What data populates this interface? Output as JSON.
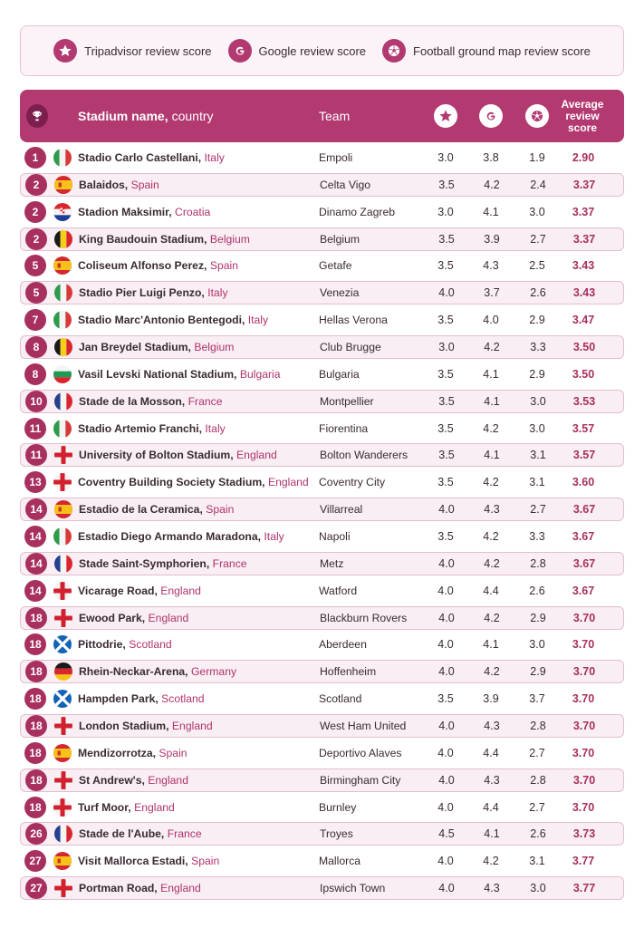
{
  "legend": {
    "tripadvisor": "Tripadvisor review score",
    "google": "Google review score",
    "football": "Football ground map review score"
  },
  "header": {
    "stadium": "Stadium name,",
    "country": "country",
    "team": "Team",
    "average_line1": "Average",
    "average_line2": "review",
    "average_line3": "score"
  },
  "colors": {
    "accent": "#b23a71",
    "rank": "#a8305f",
    "country_text": "#b0336b"
  },
  "rows": [
    {
      "rank": "1",
      "stadium": "Stadio Carlo Castellani,",
      "country": "Italy",
      "flag": "italy",
      "team": "Empoli",
      "tripadvisor": "3.0",
      "google": "3.8",
      "football": "1.9",
      "average": "2.90"
    },
    {
      "rank": "2",
      "stadium": "Balaidos,",
      "country": "Spain",
      "flag": "spain",
      "team": "Celta Vigo",
      "tripadvisor": "3.5",
      "google": "4.2",
      "football": "2.4",
      "average": "3.37"
    },
    {
      "rank": "2",
      "stadium": "Stadion Maksimir,",
      "country": "Croatia",
      "flag": "croatia",
      "team": "Dinamo Zagreb",
      "tripadvisor": "3.0",
      "google": "4.1",
      "football": "3.0",
      "average": "3.37"
    },
    {
      "rank": "2",
      "stadium": "King Baudouin Stadium,",
      "country": "Belgium",
      "flag": "belgium",
      "team": "Belgium",
      "tripadvisor": "3.5",
      "google": "3.9",
      "football": "2.7",
      "average": "3.37"
    },
    {
      "rank": "5",
      "stadium": "Coliseum Alfonso Perez,",
      "country": "Spain",
      "flag": "spain",
      "team": "Getafe",
      "tripadvisor": "3.5",
      "google": "4.3",
      "football": "2.5",
      "average": "3.43"
    },
    {
      "rank": "5",
      "stadium": "Stadio Pier Luigi Penzo,",
      "country": "Italy",
      "flag": "italy",
      "team": "Venezia",
      "tripadvisor": "4.0",
      "google": "3.7",
      "football": "2.6",
      "average": "3.43"
    },
    {
      "rank": "7",
      "stadium": "Stadio Marc'Antonio Bentegodi,",
      "country": "Italy",
      "flag": "italy",
      "team": "Hellas Verona",
      "tripadvisor": "3.5",
      "google": "4.0",
      "football": "2.9",
      "average": "3.47"
    },
    {
      "rank": "8",
      "stadium": "Jan Breydel Stadium,",
      "country": "Belgium",
      "flag": "belgium",
      "team": "Club Brugge",
      "tripadvisor": "3.0",
      "google": "4.2",
      "football": "3.3",
      "average": "3.50"
    },
    {
      "rank": "8",
      "stadium": "Vasil Levski National Stadium,",
      "country": "Bulgaria",
      "flag": "bulgaria",
      "team": "Bulgaria",
      "tripadvisor": "3.5",
      "google": "4.1",
      "football": "2.9",
      "average": "3.50"
    },
    {
      "rank": "10",
      "stadium": "Stade de la Mosson,",
      "country": "France",
      "flag": "france",
      "team": "Montpellier",
      "tripadvisor": "3.5",
      "google": "4.1",
      "football": "3.0",
      "average": "3.53"
    },
    {
      "rank": "11",
      "stadium": "Stadio Artemio Franchi,",
      "country": "Italy",
      "flag": "italy",
      "team": "Fiorentina",
      "tripadvisor": "3.5",
      "google": "4.2",
      "football": "3.0",
      "average": "3.57"
    },
    {
      "rank": "11",
      "stadium": "University of Bolton Stadium,",
      "country": "England",
      "flag": "england",
      "team": "Bolton Wanderers",
      "tripadvisor": "3.5",
      "google": "4.1",
      "football": "3.1",
      "average": "3.57"
    },
    {
      "rank": "13",
      "stadium": "Coventry Building Society Stadium,",
      "country": "England",
      "flag": "england",
      "team": "Coventry City",
      "tripadvisor": "3.5",
      "google": "4.2",
      "football": "3.1",
      "average": "3.60"
    },
    {
      "rank": "14",
      "stadium": "Estadio de la Ceramica,",
      "country": "Spain",
      "flag": "spain",
      "team": "Villarreal",
      "tripadvisor": "4.0",
      "google": "4.3",
      "football": "2.7",
      "average": "3.67"
    },
    {
      "rank": "14",
      "stadium": "Estadio Diego Armando Maradona,",
      "country": "Italy",
      "flag": "italy",
      "team": "Napoli",
      "tripadvisor": "3.5",
      "google": "4.2",
      "football": "3.3",
      "average": "3.67"
    },
    {
      "rank": "14",
      "stadium": "Stade Saint-Symphorien,",
      "country": "France",
      "flag": "france",
      "team": "Metz",
      "tripadvisor": "4.0",
      "google": "4.2",
      "football": "2.8",
      "average": "3.67"
    },
    {
      "rank": "14",
      "stadium": "Vicarage Road,",
      "country": "England",
      "flag": "england",
      "team": "Watford",
      "tripadvisor": "4.0",
      "google": "4.4",
      "football": "2.6",
      "average": "3.67"
    },
    {
      "rank": "18",
      "stadium": "Ewood Park,",
      "country": "England",
      "flag": "england",
      "team": "Blackburn Rovers",
      "tripadvisor": "4.0",
      "google": "4.2",
      "football": "2.9",
      "average": "3.70"
    },
    {
      "rank": "18",
      "stadium": "Pittodrie,",
      "country": "Scotland",
      "flag": "scotland",
      "team": "Aberdeen",
      "tripadvisor": "4.0",
      "google": "4.1",
      "football": "3.0",
      "average": "3.70"
    },
    {
      "rank": "18",
      "stadium": "Rhein-Neckar-Arena,",
      "country": "Germany",
      "flag": "germany",
      "team": "Hoffenheim",
      "tripadvisor": "4.0",
      "google": "4.2",
      "football": "2.9",
      "average": "3.70"
    },
    {
      "rank": "18",
      "stadium": "Hampden Park,",
      "country": "Scotland",
      "flag": "scotland",
      "team": "Scotland",
      "tripadvisor": "3.5",
      "google": "3.9",
      "football": "3.7",
      "average": "3.70"
    },
    {
      "rank": "18",
      "stadium": "London Stadium,",
      "country": "England",
      "flag": "england",
      "team": "West Ham United",
      "tripadvisor": "4.0",
      "google": "4.3",
      "football": "2.8",
      "average": "3.70"
    },
    {
      "rank": "18",
      "stadium": "Mendizorrotza,",
      "country": "Spain",
      "flag": "spain",
      "team": "Deportivo Alaves",
      "tripadvisor": "4.0",
      "google": "4.4",
      "football": "2.7",
      "average": "3.70"
    },
    {
      "rank": "18",
      "stadium": "St Andrew's,",
      "country": "England",
      "flag": "england",
      "team": "Birmingham City",
      "tripadvisor": "4.0",
      "google": "4.3",
      "football": "2.8",
      "average": "3.70"
    },
    {
      "rank": "18",
      "stadium": "Turf Moor,",
      "country": "England",
      "flag": "england",
      "team": "Burnley",
      "tripadvisor": "4.0",
      "google": "4.4",
      "football": "2.7",
      "average": "3.70"
    },
    {
      "rank": "26",
      "stadium": "Stade de l'Aube,",
      "country": "France",
      "flag": "france",
      "team": "Troyes",
      "tripadvisor": "4.5",
      "google": "4.1",
      "football": "2.6",
      "average": "3.73"
    },
    {
      "rank": "27",
      "stadium": "Visit Mallorca Estadi,",
      "country": "Spain",
      "flag": "spain",
      "team": "Mallorca",
      "tripadvisor": "4.0",
      "google": "4.2",
      "football": "3.1",
      "average": "3.77"
    },
    {
      "rank": "27",
      "stadium": "Portman Road,",
      "country": "England",
      "flag": "england",
      "team": "Ipswich Town",
      "tripadvisor": "4.0",
      "google": "4.3",
      "football": "3.0",
      "average": "3.77"
    }
  ]
}
